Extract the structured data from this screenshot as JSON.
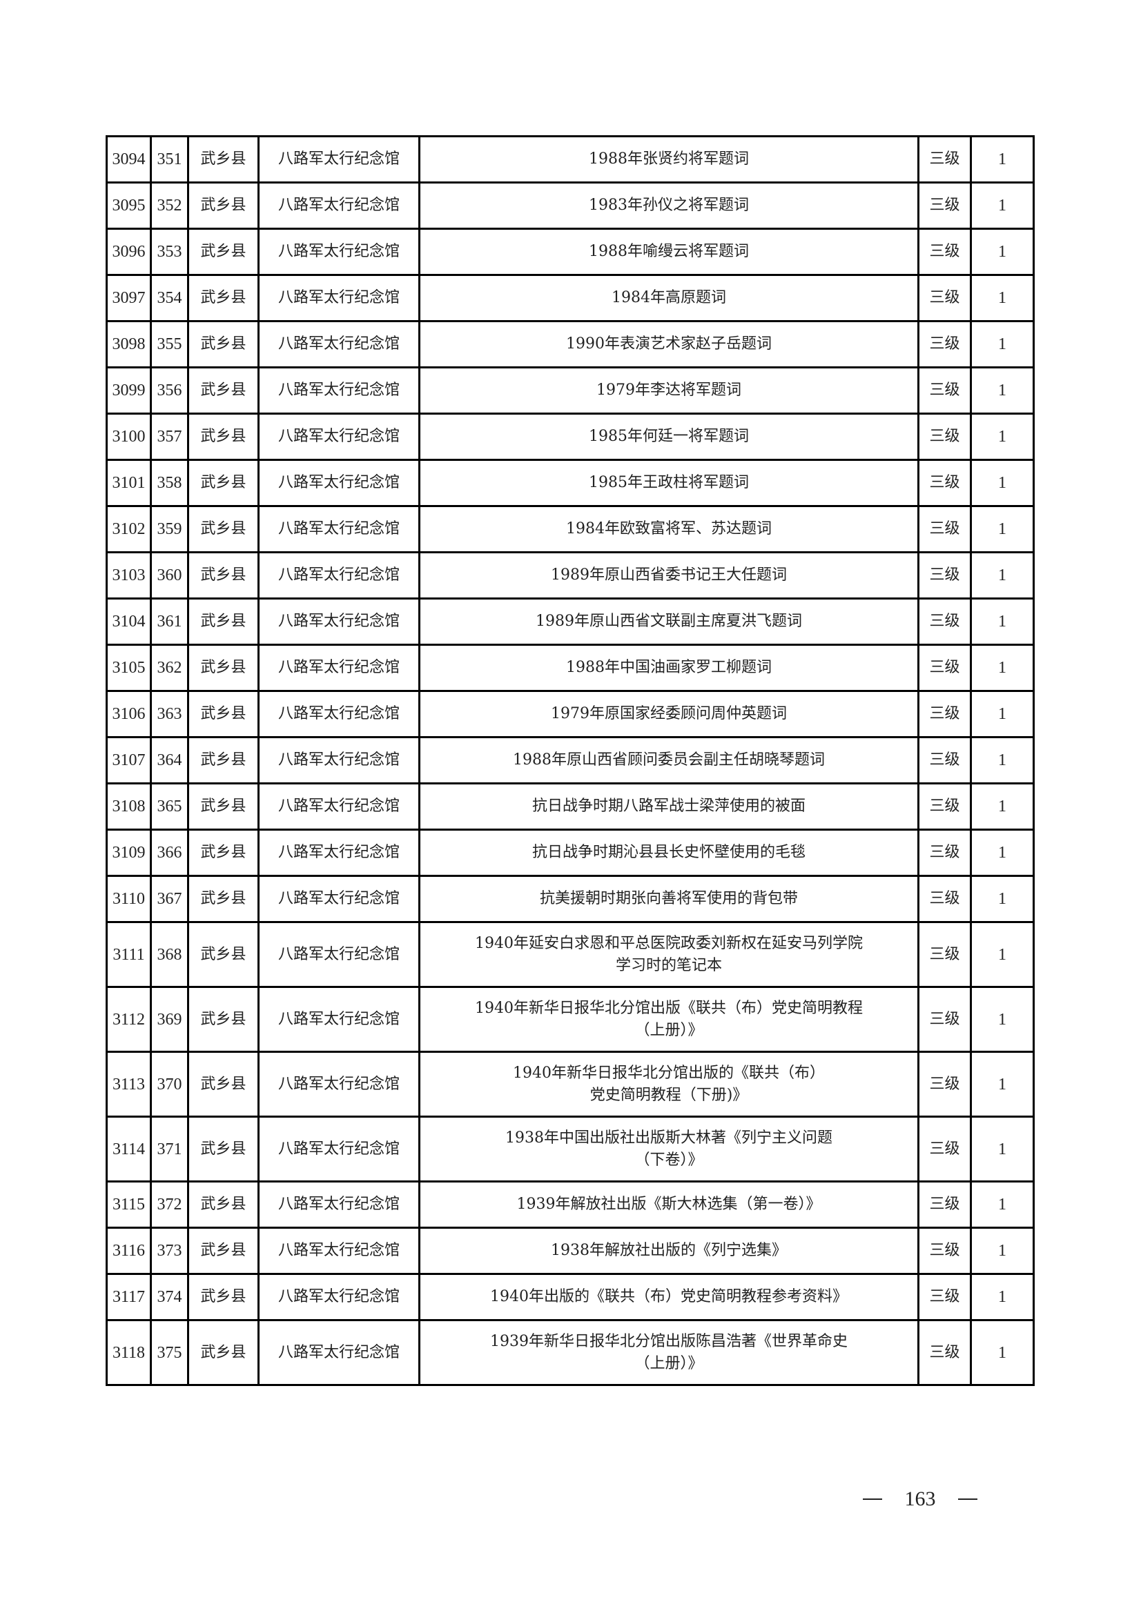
{
  "rows": [
    {
      "seq": "3094",
      "sub": "351",
      "county": "武乡县",
      "unit": "八路军太行纪念馆",
      "name": "1988年张贤约将军题词",
      "level": "三级",
      "qty": "1"
    },
    {
      "seq": "3095",
      "sub": "352",
      "county": "武乡县",
      "unit": "八路军太行纪念馆",
      "name": "1983年孙仪之将军题词",
      "level": "三级",
      "qty": "1"
    },
    {
      "seq": "3096",
      "sub": "353",
      "county": "武乡县",
      "unit": "八路军太行纪念馆",
      "name": "1988年喻缦云将军题词",
      "level": "三级",
      "qty": "1"
    },
    {
      "seq": "3097",
      "sub": "354",
      "county": "武乡县",
      "unit": "八路军太行纪念馆",
      "name": "1984年高原题词",
      "level": "三级",
      "qty": "1"
    },
    {
      "seq": "3098",
      "sub": "355",
      "county": "武乡县",
      "unit": "八路军太行纪念馆",
      "name": "1990年表演艺术家赵子岳题词",
      "level": "三级",
      "qty": "1"
    },
    {
      "seq": "3099",
      "sub": "356",
      "county": "武乡县",
      "unit": "八路军太行纪念馆",
      "name": "1979年李达将军题词",
      "level": "三级",
      "qty": "1"
    },
    {
      "seq": "3100",
      "sub": "357",
      "county": "武乡县",
      "unit": "八路军太行纪念馆",
      "name": "1985年何廷一将军题词",
      "level": "三级",
      "qty": "1"
    },
    {
      "seq": "3101",
      "sub": "358",
      "county": "武乡县",
      "unit": "八路军太行纪念馆",
      "name": "1985年王政柱将军题词",
      "level": "三级",
      "qty": "1"
    },
    {
      "seq": "3102",
      "sub": "359",
      "county": "武乡县",
      "unit": "八路军太行纪念馆",
      "name": "1984年欧致富将军、苏达题词",
      "level": "三级",
      "qty": "1"
    },
    {
      "seq": "3103",
      "sub": "360",
      "county": "武乡县",
      "unit": "八路军太行纪念馆",
      "name": "1989年原山西省委书记王大任题词",
      "level": "三级",
      "qty": "1"
    },
    {
      "seq": "3104",
      "sub": "361",
      "county": "武乡县",
      "unit": "八路军太行纪念馆",
      "name": "1989年原山西省文联副主席夏洪飞题词",
      "level": "三级",
      "qty": "1"
    },
    {
      "seq": "3105",
      "sub": "362",
      "county": "武乡县",
      "unit": "八路军太行纪念馆",
      "name": "1988年中国油画家罗工柳题词",
      "level": "三级",
      "qty": "1"
    },
    {
      "seq": "3106",
      "sub": "363",
      "county": "武乡县",
      "unit": "八路军太行纪念馆",
      "name": "1979年原国家经委顾问周仲英题词",
      "level": "三级",
      "qty": "1"
    },
    {
      "seq": "3107",
      "sub": "364",
      "county": "武乡县",
      "unit": "八路军太行纪念馆",
      "name": "1988年原山西省顾问委员会副主任胡晓琴题词",
      "level": "三级",
      "qty": "1"
    },
    {
      "seq": "3108",
      "sub": "365",
      "county": "武乡县",
      "unit": "八路军太行纪念馆",
      "name": "抗日战争时期八路军战士梁萍使用的被面",
      "level": "三级",
      "qty": "1"
    },
    {
      "seq": "3109",
      "sub": "366",
      "county": "武乡县",
      "unit": "八路军太行纪念馆",
      "name": "抗日战争时期沁县县长史怀壁使用的毛毯",
      "level": "三级",
      "qty": "1"
    },
    {
      "seq": "3110",
      "sub": "367",
      "county": "武乡县",
      "unit": "八路军太行纪念馆",
      "name": "抗美援朝时期张向善将军使用的背包带",
      "level": "三级",
      "qty": "1"
    },
    {
      "seq": "3111",
      "sub": "368",
      "county": "武乡县",
      "unit": "八路军太行纪念馆",
      "name": "1940年延安白求恩和平总医院政委刘新权在延安马列学院",
      "name2": "学习时的笔记本",
      "level": "三级",
      "qty": "1"
    },
    {
      "seq": "3112",
      "sub": "369",
      "county": "武乡县",
      "unit": "八路军太行纪念馆",
      "name": "1940年新华日报华北分馆出版《联共（布）党史简明教程",
      "name2": "（上册）》",
      "level": "三级",
      "qty": "1"
    },
    {
      "seq": "3113",
      "sub": "370",
      "county": "武乡县",
      "unit": "八路军太行纪念馆",
      "name": "1940年新华日报华北分馆出版的《联共（布）",
      "name2": "党史简明教程（下册)》",
      "level": "三级",
      "qty": "1"
    },
    {
      "seq": "3114",
      "sub": "371",
      "county": "武乡县",
      "unit": "八路军太行纪念馆",
      "name": "1938年中国出版社出版斯大林著《列宁主义问题",
      "name2": "（下卷）》",
      "level": "三级",
      "qty": "1"
    },
    {
      "seq": "3115",
      "sub": "372",
      "county": "武乡县",
      "unit": "八路军太行纪念馆",
      "name": "1939年解放社出版《斯大林选集（第一卷）》",
      "level": "三级",
      "qty": "1"
    },
    {
      "seq": "3116",
      "sub": "373",
      "county": "武乡县",
      "unit": "八路军太行纪念馆",
      "name": "1938年解放社出版的《列宁选集》",
      "level": "三级",
      "qty": "1"
    },
    {
      "seq": "3117",
      "sub": "374",
      "county": "武乡县",
      "unit": "八路军太行纪念馆",
      "name": "1940年出版的《联共（布）党史简明教程参考资料》",
      "level": "三级",
      "qty": "1"
    },
    {
      "seq": "3118",
      "sub": "375",
      "county": "武乡县",
      "unit": "八路军太行纪念馆",
      "name": "1939年新华日报华北分馆出版陈昌浩著《世界革命史",
      "name2": "（上册）》",
      "level": "三级",
      "qty": "1"
    }
  ],
  "footer": {
    "page_number": "163"
  }
}
